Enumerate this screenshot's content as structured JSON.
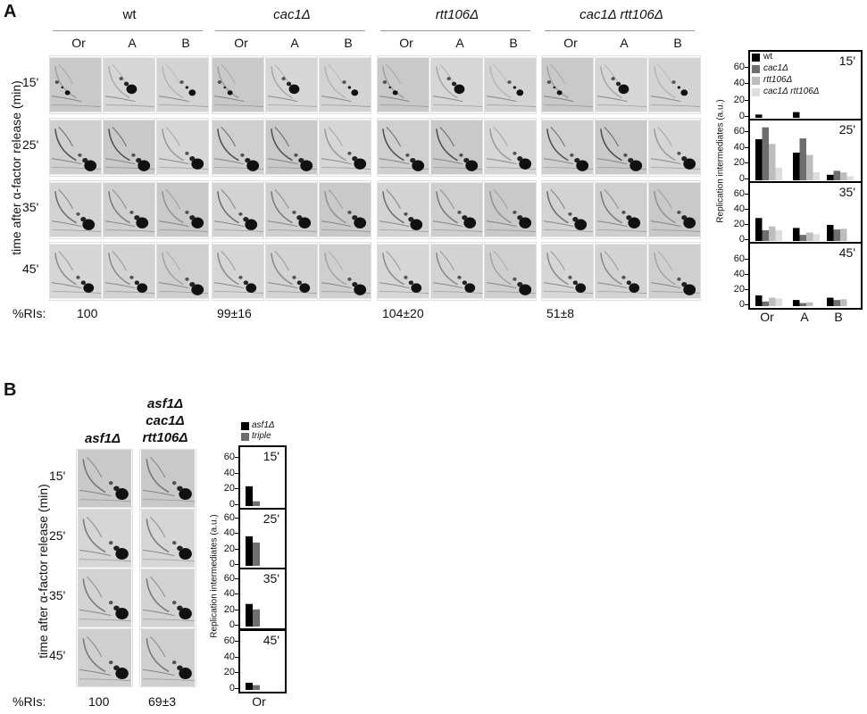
{
  "panelA": {
    "label": "A",
    "groups": [
      {
        "name": "wt",
        "italic": false
      },
      {
        "name": "cac1Δ",
        "italic": true
      },
      {
        "name": "rtt106Δ",
        "italic": true
      },
      {
        "name": "cac1Δ rtt106Δ",
        "italic": true
      }
    ],
    "lanes": [
      "Or",
      "A",
      "B"
    ],
    "times": [
      "15'",
      "25'",
      "35'",
      "45'"
    ],
    "y_title": "time after α-factor release (min)",
    "ri_label": "%RIs:",
    "ri_values": [
      "100",
      "99±16",
      "104±20",
      "51±8"
    ],
    "chart_data": {
      "type": "bar",
      "ylabel": "Replication intermediates (a.u.)",
      "categories": [
        "Or",
        "A",
        "B"
      ],
      "ylim": [
        0,
        70
      ],
      "yticks": [
        "0",
        "20",
        "40",
        "60"
      ],
      "legend": [
        "wt",
        "cac1Δ",
        "rtt106Δ",
        "cac1Δ rtt106Δ"
      ],
      "colors": [
        "#000000",
        "#6e6e6e",
        "#bdbdbd",
        "#dedede"
      ],
      "panels": [
        {
          "time": "15'",
          "series": [
            [
              4,
              7,
              0
            ],
            [
              0,
              0,
              0
            ],
            [
              0,
              0,
              0
            ],
            [
              0,
              0,
              0
            ]
          ]
        },
        {
          "time": "25'",
          "series": [
            [
              52,
              35,
              7
            ],
            [
              67,
              53,
              12
            ],
            [
              46,
              32,
              10
            ],
            [
              16,
              10,
              5
            ]
          ]
        },
        {
          "time": "35'",
          "series": [
            [
              30,
              17,
              21
            ],
            [
              14,
              8,
              15
            ],
            [
              19,
              11,
              16
            ],
            [
              14,
              9,
              0
            ]
          ]
        },
        {
          "time": "45'",
          "series": [
            [
              14,
              8,
              11
            ],
            [
              6,
              4,
              8
            ],
            [
              11,
              5,
              9
            ],
            [
              10,
              0,
              0
            ]
          ]
        }
      ]
    }
  },
  "panelB": {
    "label": "B",
    "columns": [
      "asf1Δ",
      "asf1Δ",
      "cac1Δ",
      "rtt106Δ"
    ],
    "times": [
      "15'",
      "25'",
      "35'",
      "45'"
    ],
    "y_title": "time after α-factor release (min)",
    "ri_label": "%RIs:",
    "ri_values": [
      "100",
      "69±3"
    ],
    "chart_data": {
      "type": "bar",
      "ylabel": "Replication intermediates (a.u.)",
      "categories": [
        "Or"
      ],
      "ylim": [
        0,
        70
      ],
      "yticks": [
        "0",
        "20",
        "40",
        "60"
      ],
      "legend": [
        "asf1Δ",
        "triple"
      ],
      "colors": [
        "#000000",
        "#6e6e6e"
      ],
      "panels": [
        {
          "time": "15'",
          "series": [
            [
              25
            ],
            [
              6
            ]
          ]
        },
        {
          "time": "25'",
          "series": [
            [
              38
            ],
            [
              30
            ]
          ]
        },
        {
          "time": "35'",
          "series": [
            [
              29
            ],
            [
              22
            ]
          ]
        },
        {
          "time": "45'",
          "series": [
            [
              9
            ],
            [
              6
            ]
          ]
        }
      ]
    }
  }
}
